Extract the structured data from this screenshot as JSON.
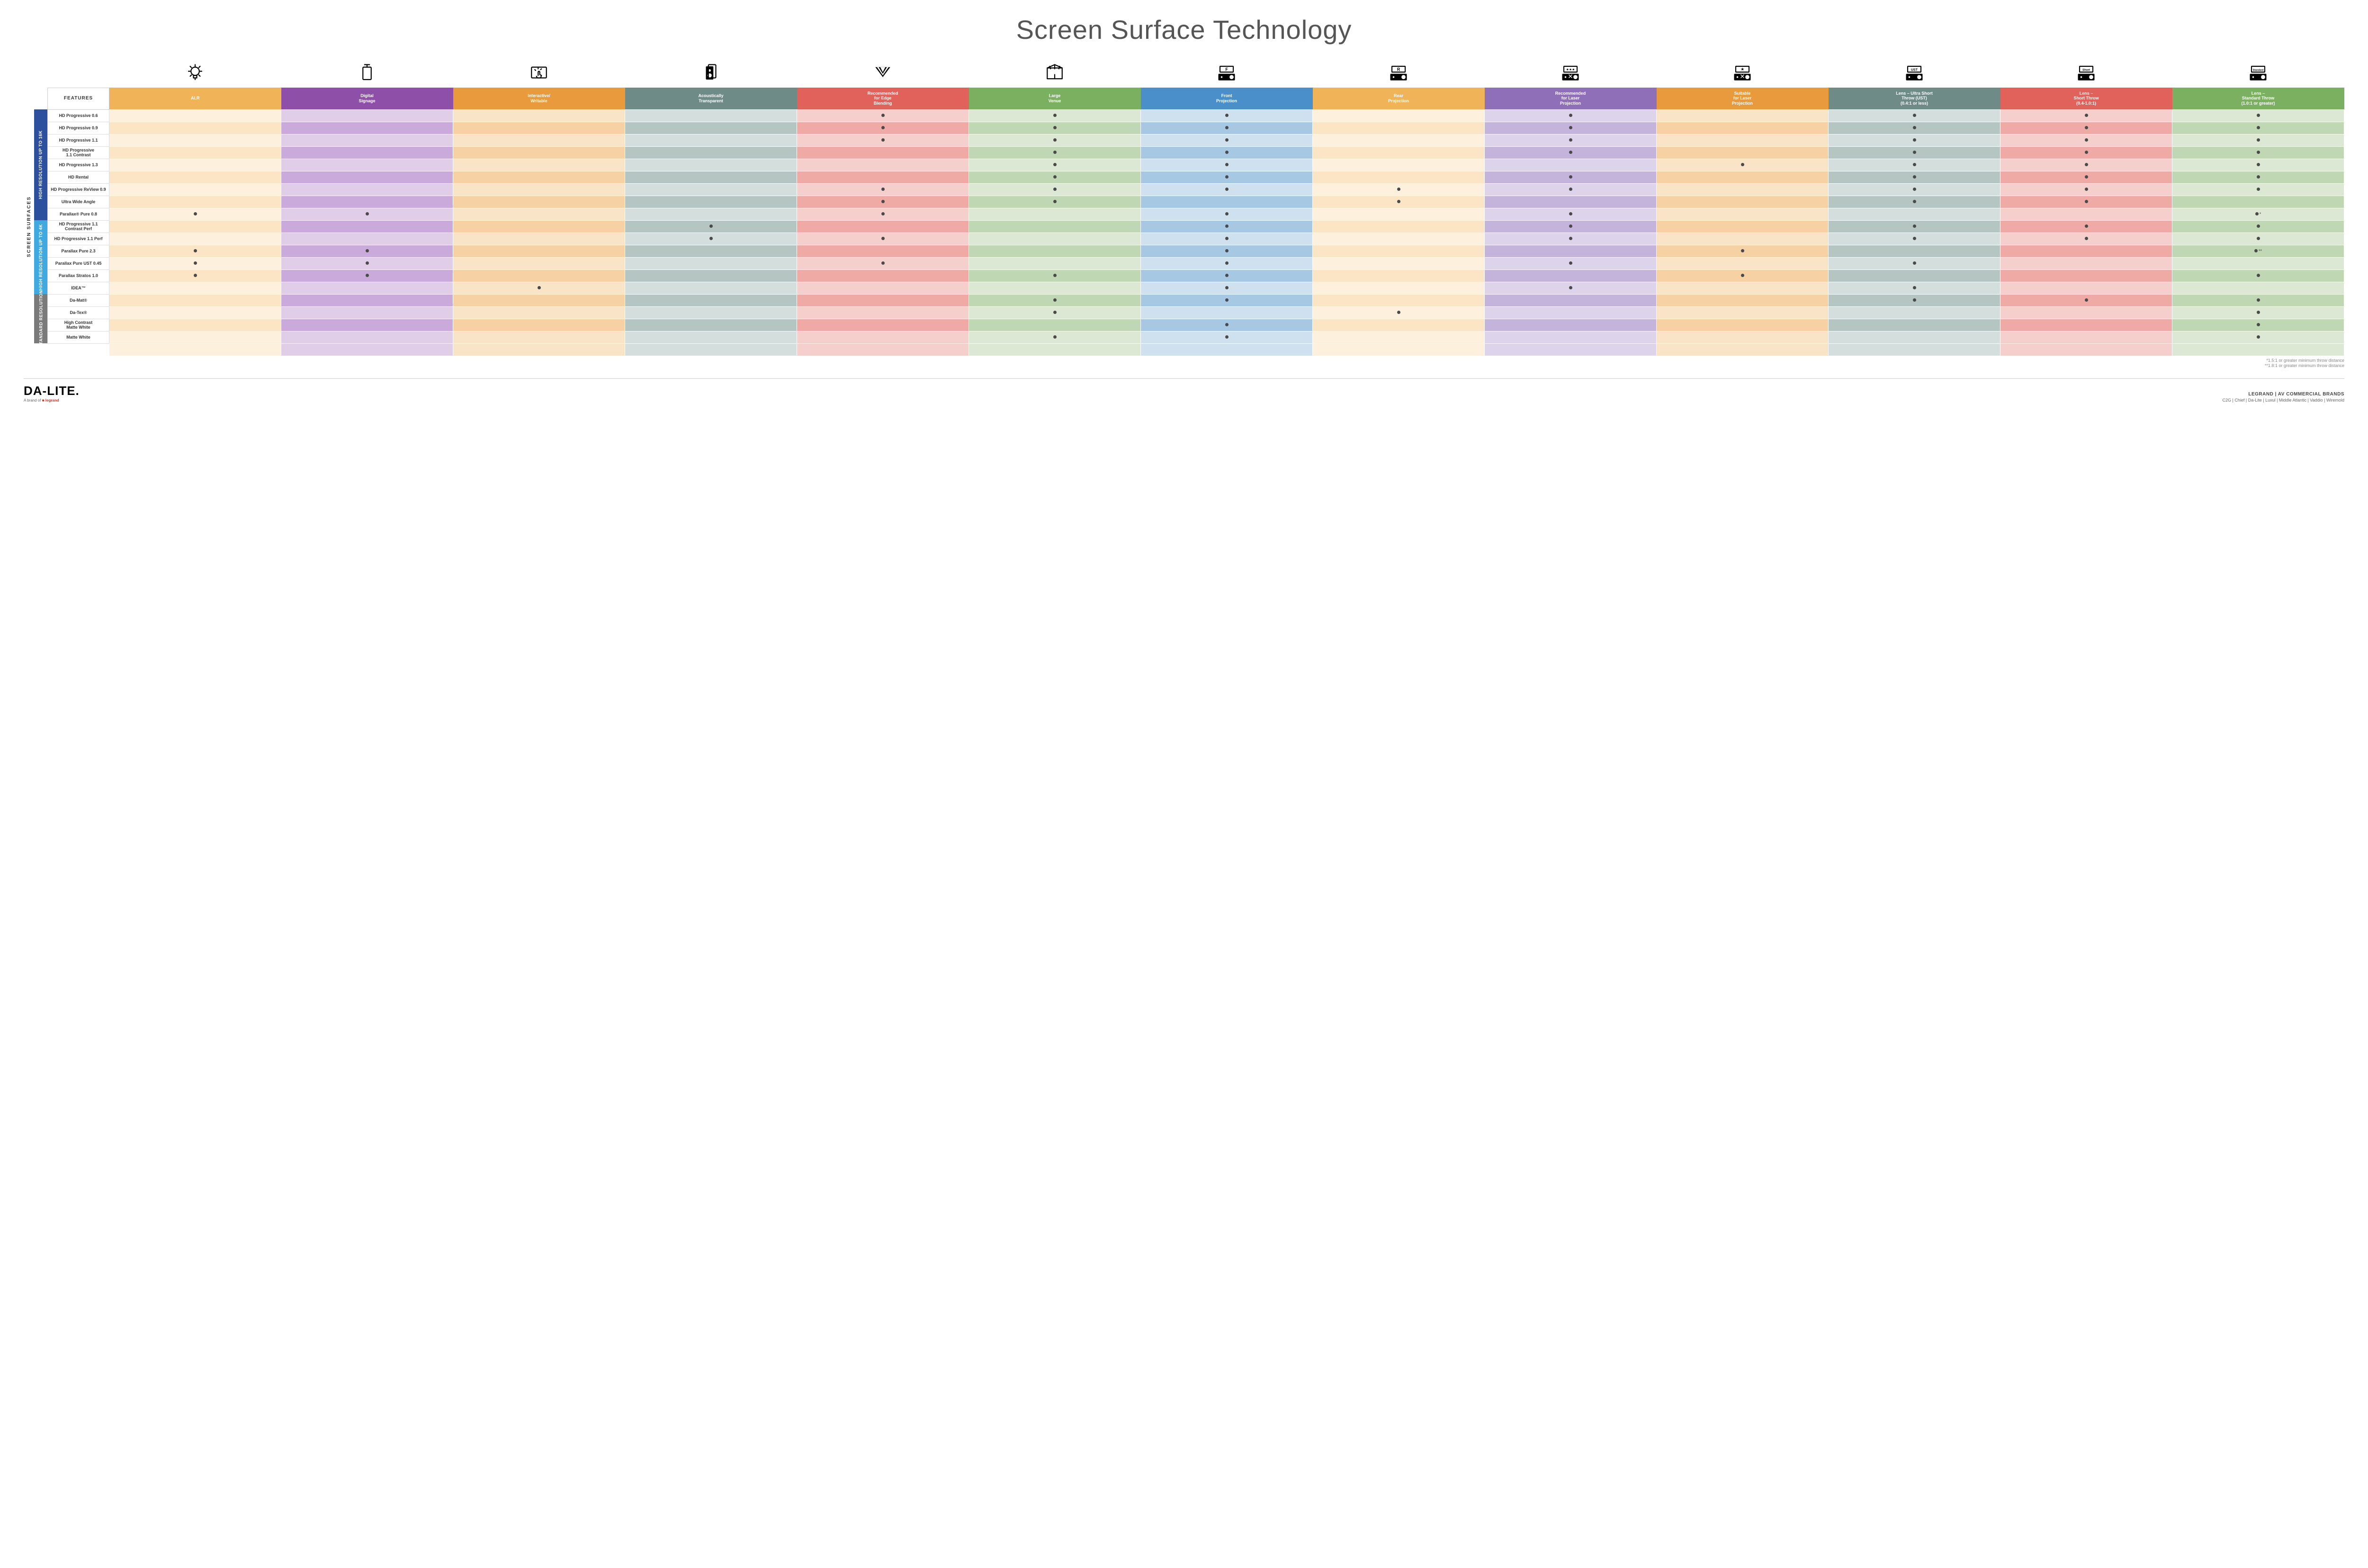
{
  "title": "Screen Surface Technology",
  "featuresLabel": "FEATURES",
  "verticalLabel": "SCREEN SURFACES",
  "columns": [
    {
      "key": "alr",
      "label": "ALR",
      "color": "#f0b357",
      "light": "#fce5c4",
      "lighter": "#fdf0dc"
    },
    {
      "key": "ds",
      "label": "Digital\nSignage",
      "color": "#8e4fa8",
      "light": "#c9aadb",
      "lighter": "#e0cde8"
    },
    {
      "key": "iw",
      "label": "Interactive/\nWritable",
      "color": "#e89a3c",
      "light": "#f5d1a4",
      "lighter": "#f9e4c8"
    },
    {
      "key": "at",
      "label": "Acoustically\nTransparent",
      "color": "#6f8b87",
      "light": "#b4c5c2",
      "lighter": "#d4dedc"
    },
    {
      "key": "eb",
      "label": "Recommended\nfor Edge\nBlending",
      "color": "#e0625b",
      "light": "#efaaa6",
      "lighter": "#f5cfcc"
    },
    {
      "key": "lv",
      "label": "Large\nVenue",
      "color": "#7bb060",
      "light": "#bfd7b2",
      "lighter": "#dce8d4"
    },
    {
      "key": "fp",
      "label": "Front\nProjection",
      "color": "#4a8fc9",
      "light": "#a6c8e3",
      "lighter": "#cfe0ef"
    },
    {
      "key": "rp",
      "label": "Rear\nProjection",
      "color": "#f0b357",
      "light": "#fce5c4",
      "lighter": "#fdf0dc"
    },
    {
      "key": "rl",
      "label": "Recommended\nfor Laser\nProjection",
      "color": "#8e6fb8",
      "light": "#c4b3da",
      "lighter": "#ddd3ea"
    },
    {
      "key": "sl",
      "label": "Suitable\nfor Laser\nProjection",
      "color": "#e89a3c",
      "light": "#f5d1a4",
      "lighter": "#f9e4c8"
    },
    {
      "key": "ust",
      "label": "Lens – Ultra Short\nThrow (UST)\n(0.4:1 or less)",
      "color": "#6f8b87",
      "light": "#b4c5c2",
      "lighter": "#d4dedc"
    },
    {
      "key": "st",
      "label": "Lens –\nShort Throw\n(0.4-1.0:1)",
      "color": "#e0625b",
      "light": "#efaaa6",
      "lighter": "#f5cfcc"
    },
    {
      "key": "std",
      "label": "Lens –\nStandard Throw\n(1.0:1 or greater)",
      "color": "#7bb060",
      "light": "#bfd7b2",
      "lighter": "#dce8d4"
    }
  ],
  "categories": [
    {
      "label": "HIGH RESOLUTION UP TO 16K",
      "color": "#2c4f9e",
      "rows": [
        {
          "name": "HD Progressive 0.6",
          "dots": [
            "eb",
            "lv",
            "fp",
            "rl",
            "ust",
            "st",
            "std"
          ]
        },
        {
          "name": "HD Progressive 0.9",
          "dots": [
            "eb",
            "lv",
            "fp",
            "rl",
            "ust",
            "st",
            "std"
          ]
        },
        {
          "name": "HD Progressive 1.1",
          "dots": [
            "eb",
            "lv",
            "fp",
            "rl",
            "ust",
            "st",
            "std"
          ]
        },
        {
          "name": "HD Progressive\n1.1 Contrast",
          "dots": [
            "lv",
            "fp",
            "rl",
            "ust",
            "st",
            "std"
          ]
        },
        {
          "name": "HD Progressive 1.3",
          "dots": [
            "lv",
            "fp",
            "sl",
            "ust",
            "st",
            "std"
          ]
        },
        {
          "name": "HD Rental",
          "dots": [
            "lv",
            "fp",
            "rl",
            "ust",
            "st",
            "std"
          ]
        },
        {
          "name": "HD Progressive ReView 0.9",
          "dots": [
            "eb",
            "lv",
            "fp",
            "rp",
            "rl",
            "ust",
            "st",
            "std"
          ]
        },
        {
          "name": "Ultra Wide Angle",
          "dots": [
            "eb",
            "lv",
            "rp",
            "ust",
            "st"
          ]
        },
        {
          "name": "Parallax® Pure 0.8",
          "dots": [
            "alr",
            "ds",
            "eb",
            "fp",
            "rl",
            "std"
          ],
          "suffix": "*"
        }
      ]
    },
    {
      "label": "HIGH RESOLUTION UP TO 4K",
      "color": "#3fa9e0",
      "rows": [
        {
          "name": "HD Progressive 1.1\nContrast Perf",
          "dots": [
            "at",
            "fp",
            "rl",
            "ust",
            "st",
            "std"
          ]
        },
        {
          "name": "HD Progressive 1.1 Perf",
          "dots": [
            "at",
            "eb",
            "fp",
            "rl",
            "ust",
            "st",
            "std"
          ]
        },
        {
          "name": "Parallax Pure 2.3",
          "dots": [
            "alr",
            "ds",
            "fp",
            "sl",
            "std"
          ],
          "suffix": "**"
        },
        {
          "name": "Parallax Pure UST 0.45",
          "dots": [
            "alr",
            "ds",
            "eb",
            "fp",
            "rl",
            "ust"
          ]
        },
        {
          "name": "Parallax Stratos 1.0",
          "dots": [
            "alr",
            "ds",
            "lv",
            "fp",
            "sl",
            "std"
          ]
        },
        {
          "name": "IDEA™",
          "dots": [
            "iw",
            "fp",
            "rl",
            "ust"
          ]
        }
      ]
    },
    {
      "label": "STANDARD\nRESOLUTION",
      "color": "#7a7a7a",
      "rows": [
        {
          "name": "Da-Mat®",
          "dots": [
            "lv",
            "fp",
            "ust",
            "st",
            "std"
          ]
        },
        {
          "name": "Da-Tex®",
          "dots": [
            "lv",
            "rp",
            "std"
          ]
        },
        {
          "name": "High Contrast\nMatte White",
          "dots": [
            "fp",
            "std"
          ]
        },
        {
          "name": "Matte White",
          "dots": [
            "lv",
            "fp",
            "std"
          ]
        }
      ]
    }
  ],
  "footnotes": [
    "*1.5:1 or greater minimum throw distance",
    "**1.8:1 or greater minimum throw distance"
  ],
  "footer": {
    "logo": "DA-LITE.",
    "logoTag": "A brand of",
    "logoTagBrand": "legrand",
    "brandsTitle": "LEGRAND | AV COMMERCIAL BRANDS",
    "brandsList": "C2G  |  Chief  |  Da-Lite  |  Luxul  |  Middle Atlantic  |  Vaddio  |  Wiremold"
  },
  "icons": [
    "bulb",
    "signage",
    "touch",
    "speaker",
    "venue",
    "stage",
    "front",
    "rear",
    "laser-rec",
    "laser-suit",
    "ust",
    "short",
    "standard"
  ]
}
